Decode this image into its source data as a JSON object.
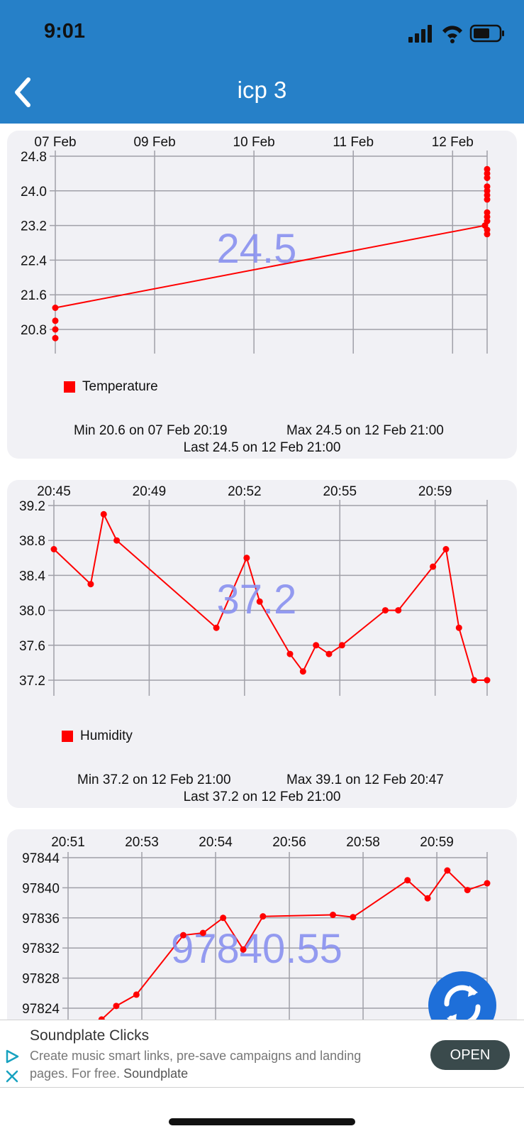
{
  "status_bar": {
    "time": "9:01"
  },
  "nav": {
    "title": "icp 3",
    "back_icon": "chevron-left-icon"
  },
  "colors": {
    "header": "#2680c8",
    "series": "#ff0000",
    "watermark": "#8890f0",
    "card": "#f1f1f5",
    "fab": "#1e6fd9"
  },
  "charts": [
    {
      "type": "line",
      "series_name": "Temperature",
      "current_value": "24.5",
      "x_tick_labels": [
        "07 Feb",
        "09 Feb",
        "10 Feb",
        "11 Feb",
        "12 Feb"
      ],
      "y_tick_labels": [
        "24.8",
        "24.0",
        "23.2",
        "22.4",
        "21.6",
        "20.8"
      ],
      "ylim": [
        20.6,
        24.8
      ],
      "y_ticks": [
        24.8,
        24.0,
        23.2,
        22.4,
        21.6,
        20.8
      ],
      "x_tick_fracs": [
        0.0,
        0.23,
        0.46,
        0.69,
        0.92
      ],
      "points": [
        [
          0.0,
          20.6
        ],
        [
          0.0,
          20.8
        ],
        [
          0.0,
          21.0
        ],
        [
          0.0,
          21.3
        ],
        [
          0.995,
          23.2
        ],
        [
          1.0,
          23.0
        ],
        [
          1.0,
          23.1
        ],
        [
          1.0,
          23.3
        ],
        [
          1.0,
          23.4
        ],
        [
          1.0,
          23.5
        ],
        [
          1.0,
          23.8
        ],
        [
          1.0,
          23.9
        ],
        [
          1.0,
          24.0
        ],
        [
          1.0,
          24.1
        ],
        [
          1.0,
          24.3
        ],
        [
          1.0,
          24.4
        ],
        [
          1.0,
          24.5
        ]
      ],
      "line_path": [
        [
          0.0,
          21.3
        ],
        [
          0.995,
          23.2
        ]
      ],
      "stats": {
        "min": "Min 20.6 on 07 Feb 20:19",
        "max": "Max 24.5 on 12 Feb 21:00",
        "last": "Last 24.5 on 12 Feb 21:00"
      }
    },
    {
      "type": "line",
      "series_name": "Humidity",
      "current_value": "37.2",
      "x_tick_labels": [
        "20:45",
        "20:49",
        "20:52",
        "20:55",
        "20:59"
      ],
      "y_tick_labels": [
        "39.2",
        "38.8",
        "38.4",
        "38.0",
        "37.6",
        "37.2"
      ],
      "ylim": [
        37.2,
        39.2
      ],
      "y_ticks": [
        39.2,
        38.8,
        38.4,
        38.0,
        37.6,
        37.2
      ],
      "x_tick_fracs": [
        0.0,
        0.22,
        0.44,
        0.66,
        0.88
      ],
      "points": [
        [
          0.0,
          38.7
        ],
        [
          0.085,
          38.3
        ],
        [
          0.115,
          39.1
        ],
        [
          0.145,
          38.8
        ],
        [
          0.375,
          37.8
        ],
        [
          0.445,
          38.6
        ],
        [
          0.475,
          38.1
        ],
        [
          0.545,
          37.5
        ],
        [
          0.575,
          37.3
        ],
        [
          0.605,
          37.6
        ],
        [
          0.635,
          37.5
        ],
        [
          0.665,
          37.6
        ],
        [
          0.765,
          38.0
        ],
        [
          0.795,
          38.0
        ],
        [
          0.875,
          38.5
        ],
        [
          0.905,
          38.7
        ],
        [
          0.935,
          37.8
        ],
        [
          0.97,
          37.2
        ],
        [
          1.0,
          37.2
        ]
      ],
      "stats": {
        "min": "Min 37.2 on 12 Feb 21:00",
        "max": "Max 39.1 on 12 Feb 20:47",
        "last": "Last 37.2 on 12 Feb 21:00"
      }
    },
    {
      "type": "line",
      "series_name": "",
      "current_value": "97840.55",
      "x_tick_labels": [
        "20:51",
        "20:53",
        "20:54",
        "20:56",
        "20:58",
        "20:59"
      ],
      "y_tick_labels": [
        "97844",
        "97840",
        "97836",
        "97832",
        "97828",
        "97824"
      ],
      "ylim": [
        97824,
        97844
      ],
      "y_ticks": [
        97844,
        97840,
        97836,
        97832,
        97828,
        97824
      ],
      "x_tick_fracs": [
        0.0,
        0.176,
        0.352,
        0.528,
        0.704,
        0.88
      ],
      "points": [
        [
          0.08,
          97822.5
        ],
        [
          0.115,
          97824.3
        ],
        [
          0.163,
          97825.8
        ],
        [
          0.275,
          97833.7
        ],
        [
          0.322,
          97834.0
        ],
        [
          0.37,
          97836.0
        ],
        [
          0.418,
          97831.8
        ],
        [
          0.465,
          97836.2
        ],
        [
          0.632,
          97836.4
        ],
        [
          0.68,
          97836.1
        ],
        [
          0.81,
          97841.0
        ],
        [
          0.858,
          97838.6
        ],
        [
          0.905,
          97842.3
        ],
        [
          0.953,
          97839.7
        ],
        [
          1.0,
          97840.6
        ]
      ],
      "stats": {
        "min": "",
        "max": "",
        "last": ""
      }
    }
  ],
  "ad": {
    "title": "Soundplate Clicks",
    "body": "Create music smart links, pre-save campaigns and landing pages. For free.",
    "brand": "Soundplate",
    "open_label": "OPEN"
  }
}
